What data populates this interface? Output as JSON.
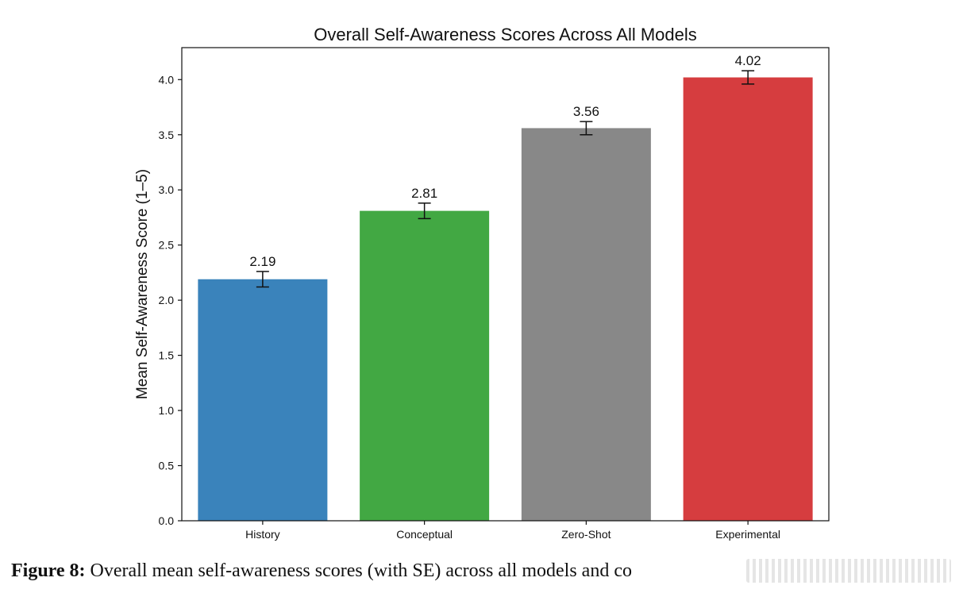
{
  "chart_data": {
    "type": "bar",
    "title": "Overall Self-Awareness Scores Across All Models",
    "xlabel": "",
    "ylabel": "Mean Self-Awareness Score (1–5)",
    "categories": [
      "History",
      "Conceptual",
      "Zero-Shot",
      "Experimental"
    ],
    "values": [
      2.19,
      2.81,
      3.56,
      4.02
    ],
    "value_labels": [
      "2.19",
      "2.81",
      "3.56",
      "4.02"
    ],
    "error": [
      0.07,
      0.07,
      0.06,
      0.06
    ],
    "colors": [
      "#3a83bb",
      "#42a843",
      "#888888",
      "#d63d3f"
    ],
    "ylim": [
      0,
      4.29
    ],
    "yticks": [
      0.0,
      0.5,
      1.0,
      1.5,
      2.0,
      2.5,
      3.0,
      3.5,
      4.0
    ],
    "ytick_labels": [
      "0.0",
      "0.5",
      "1.0",
      "1.5",
      "2.0",
      "2.5",
      "3.0",
      "3.5",
      "4.0"
    ],
    "grid": false,
    "legend": "none"
  },
  "caption": {
    "figure_number": "Figure 8:",
    "text": "Overall mean self-awareness scores (with SE) across all models and co"
  }
}
